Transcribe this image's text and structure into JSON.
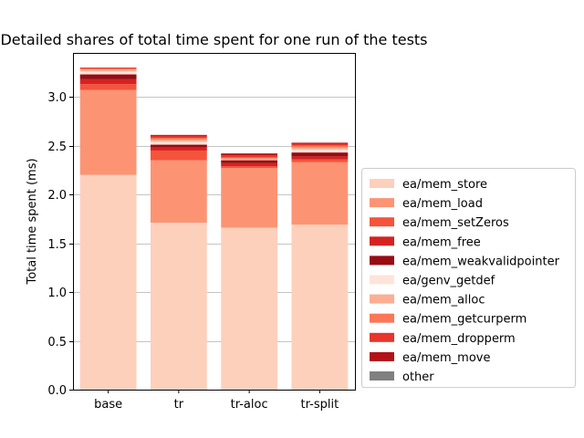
{
  "chart_data": {
    "type": "bar",
    "stacked": true,
    "title": "Detailed shares of total time spent for one run of the tests",
    "xlabel": "",
    "ylabel": "Total time spent (ms)",
    "ylim": [
      0,
      3.45
    ],
    "yticks": [
      "0.0",
      "0.5",
      "1.0",
      "1.5",
      "2.0",
      "2.5",
      "3.0"
    ],
    "grid": "horizontal",
    "legend_position": "right",
    "categories": [
      "base",
      "tr",
      "tr-aloc",
      "tr-split"
    ],
    "series": [
      {
        "name": "ea/mem_store",
        "color": "#fdd0bc",
        "values": [
          2.2,
          1.71,
          1.66,
          1.69
        ]
      },
      {
        "name": "ea/mem_load",
        "color": "#fc9474",
        "values": [
          0.87,
          0.64,
          0.61,
          0.64
        ]
      },
      {
        "name": "ea/mem_setZeros",
        "color": "#f5533b",
        "values": [
          0.06,
          0.1,
          0.02,
          0.03
        ]
      },
      {
        "name": "ea/mem_free",
        "color": "#d52221",
        "values": [
          0.05,
          0.03,
          0.03,
          0.03
        ]
      },
      {
        "name": "ea/mem_weakvalidpointer",
        "color": "#980c13",
        "values": [
          0.05,
          0.03,
          0.03,
          0.04
        ]
      },
      {
        "name": "ea/genv_getdef",
        "color": "#fee5d9",
        "values": [
          0.03,
          0.03,
          0.0,
          0.03
        ]
      },
      {
        "name": "ea/mem_alloc",
        "color": "#fcaf93",
        "values": [
          0.02,
          0.02,
          0.02,
          0.02
        ]
      },
      {
        "name": "ea/mem_getcurperm",
        "color": "#fb7757",
        "values": [
          0.01,
          0.02,
          0.01,
          0.02
        ]
      },
      {
        "name": "ea/mem_dropperm",
        "color": "#e83429",
        "values": [
          0.01,
          0.02,
          0.02,
          0.02
        ]
      },
      {
        "name": "ea/mem_move",
        "color": "#b11218",
        "values": [
          0.0,
          0.01,
          0.02,
          0.01
        ]
      },
      {
        "name": "other",
        "color": "#808080",
        "values": [
          0.0,
          0.0,
          0.0,
          0.0
        ]
      }
    ]
  }
}
